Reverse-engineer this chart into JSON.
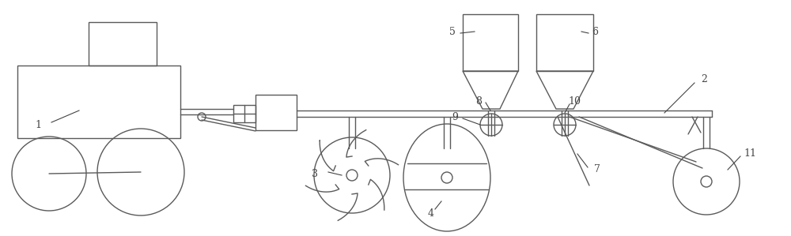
{
  "line_color": "#5a5a5a",
  "bg_color": "#ffffff",
  "label_color": "#444444",
  "lw": 1.0,
  "fig_width": 10.0,
  "fig_height": 2.99,
  "dpi": 100
}
